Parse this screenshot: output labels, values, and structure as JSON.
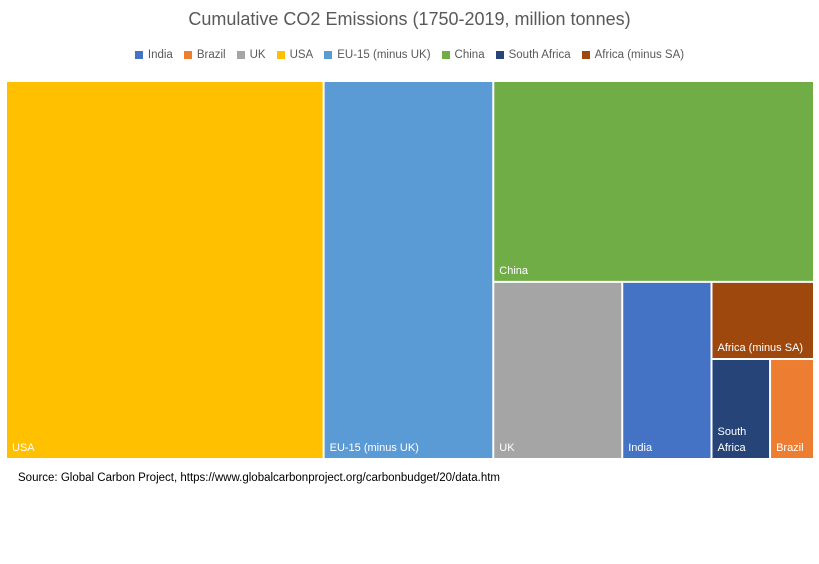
{
  "chart_data": {
    "type": "treemap",
    "title": "Cumulative CO2 Emissions (1750-2019, million tonnes)",
    "legend_position": "top",
    "items": [
      {
        "name": "India",
        "label_lines": [
          "India"
        ],
        "value": 54000,
        "color": "#4472C4"
      },
      {
        "name": "Brazil",
        "label_lines": [
          "Brazil"
        ],
        "value": 15000,
        "color": "#ED7D31"
      },
      {
        "name": "UK",
        "label_lines": [
          "UK"
        ],
        "value": 78000,
        "color": "#A5A5A5"
      },
      {
        "name": "USA",
        "label_lines": [
          "USA"
        ],
        "value": 410000,
        "color": "#FFC000"
      },
      {
        "name": "EU-15 (minus UK)",
        "label_lines": [
          "EU-15 (minus UK)"
        ],
        "value": 219000,
        "color": "#5B9BD5"
      },
      {
        "name": "China",
        "label_lines": [
          "China"
        ],
        "value": 220000,
        "color": "#70AD47"
      },
      {
        "name": "South Africa",
        "label_lines": [
          "South",
          "Africa"
        ],
        "value": 20000,
        "color": "#264478"
      },
      {
        "name": "Africa (minus SA)",
        "label_lines": [
          "Africa (minus SA)"
        ],
        "value": 27000,
        "color": "#9E480E"
      }
    ],
    "layout_order": [
      "USA",
      "EU-15 (minus UK)",
      "China",
      "UK",
      "India",
      "Africa (minus SA)",
      "South Africa",
      "Brazil"
    ]
  },
  "source_text": "Source: Global Carbon Project, https://www.globalcarbonproject.org/carbonbudget/20/data.htm"
}
